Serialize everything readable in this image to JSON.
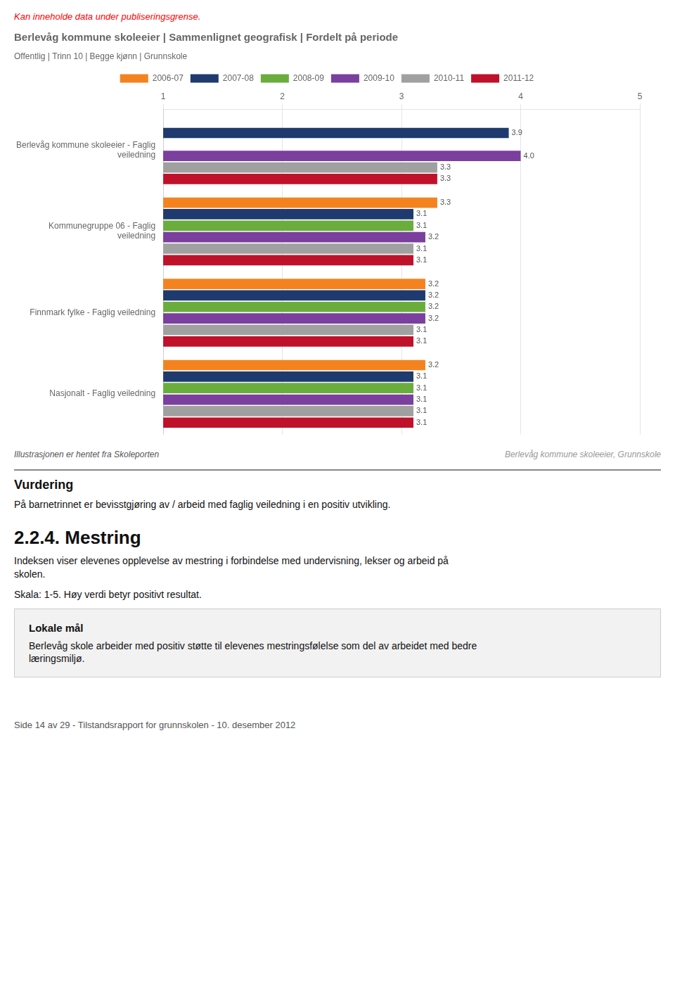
{
  "chart_data": {
    "type": "bar",
    "orientation": "horizontal",
    "title": "Berlevåg kommune skoleeier | Sammenlignet geografisk | Fordelt på periode",
    "subtitle": "Offentlig | Trinn 10 | Begge kjønn | Grunnskole",
    "categories": [
      "Berlevåg kommune skoleeier - Faglig\nveiledning",
      "Kommunegruppe 06 - Faglig\nveiledning",
      "Finnmark fylke - Faglig veiledning",
      "Nasjonalt - Faglig veiledning"
    ],
    "series": [
      {
        "name": "2006-07",
        "color": "#F4831F",
        "values": [
          null,
          3.3,
          3.2,
          3.2
        ],
        "value_labels": [
          null,
          "3.3",
          "3.2",
          "3.2"
        ]
      },
      {
        "name": "2007-08",
        "color": "#1F3A6E",
        "values": [
          3.9,
          3.1,
          3.2,
          3.1
        ],
        "value_labels": [
          "3.9",
          "3.1",
          "3.2",
          "3.1"
        ]
      },
      {
        "name": "2008-09",
        "color": "#6AAD3D",
        "values": [
          null,
          3.1,
          3.2,
          3.1
        ],
        "value_labels": [
          null,
          "3.1",
          "3.2",
          "3.1"
        ]
      },
      {
        "name": "2009-10",
        "color": "#7B3F9E",
        "values": [
          4.0,
          3.2,
          3.2,
          3.1
        ],
        "value_labels": [
          "4.0",
          "3.2",
          "3.2",
          "3.1"
        ]
      },
      {
        "name": "2010-11",
        "color": "#A0A0A0",
        "values": [
          3.3,
          3.1,
          3.1,
          3.1
        ],
        "value_labels": [
          "3.3",
          "3.1",
          "3.1",
          "3.1"
        ]
      },
      {
        "name": "2011-12",
        "color": "#C0112A",
        "values": [
          3.3,
          3.1,
          3.1,
          3.1
        ],
        "value_labels": [
          "3.3",
          "3.1",
          "3.1",
          "3.1"
        ]
      }
    ],
    "xlim": [
      1,
      5
    ],
    "xticks": [
      1,
      2,
      3,
      4,
      5
    ],
    "grid": true,
    "legend": "top",
    "data_labels": true,
    "annotations": [
      "Kan inneholde data under publiseringsgrense.",
      "Illustrasjonen er hentet fra Skoleporten",
      "Berlevåg kommune skoleeier, Grunnskole"
    ]
  },
  "sections": [
    {
      "heading": "Vurdering",
      "text": [
        "På barnetrinnet er bevisstgjøring av / arbeid med faglig veiledning i en positiv utvikling."
      ]
    },
    {
      "heading": "2.2.4.  Mestring",
      "text": [
        "Indeksen viser elevenes opplevelse av mestring i forbindelse med undervisning, lekser og arbeid på\nskolen.",
        "Skala: 1-5. Høy verdi betyr positivt resultat."
      ]
    },
    {
      "heading": "Lokale mål",
      "text": [
        "Berlevåg skole arbeider med positiv støtte til elevenes mestringsfølelse som del av arbeidet med bedre\nlæringsmiljø."
      ]
    }
  ],
  "footer": "Side 14 av 29 - Tilstandsrapport for grunnskolen - 10. desember 2012"
}
